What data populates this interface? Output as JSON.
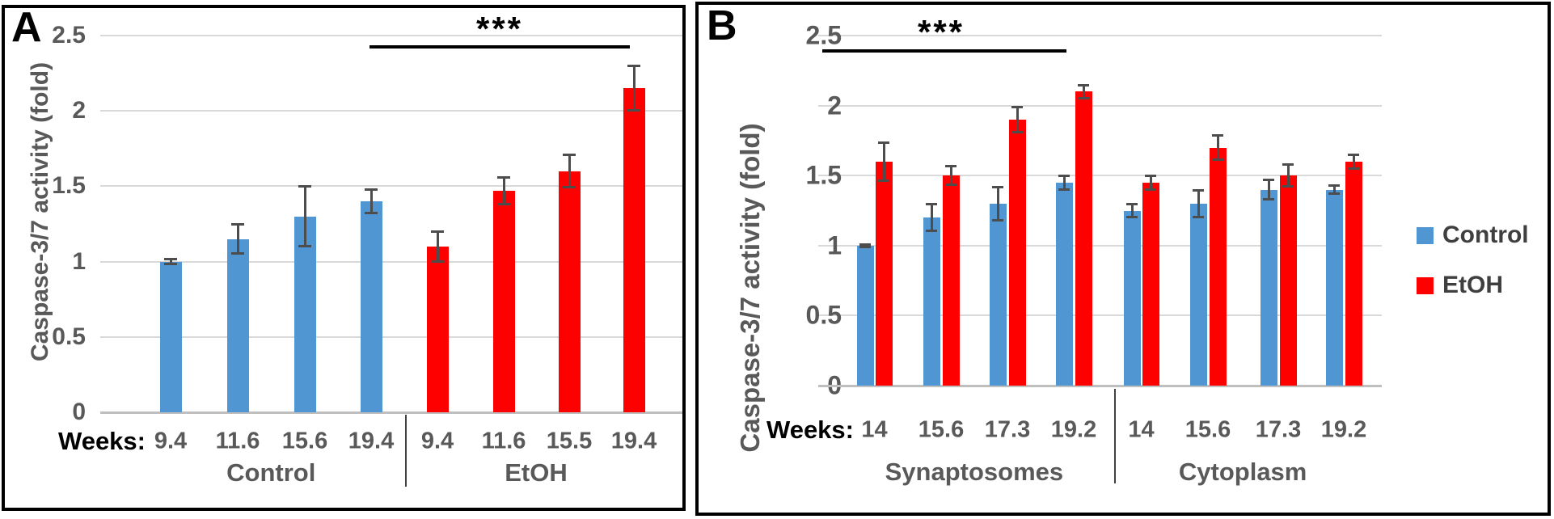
{
  "colors": {
    "control": "#4F96D3",
    "etoh": "#FE0000",
    "grid": "#D9D9D9",
    "axis_line": "#BFBFBF",
    "tick_text": "#595959",
    "error_bar": "#4D4D4D",
    "weeks_prefix_text": "#000000",
    "week_text": "#595959",
    "group_text": "#595959",
    "legend_text": "#3F3F3F",
    "significance": "#000000",
    "panel_letter": "#000000",
    "divider": "#404040"
  },
  "legend": {
    "position": "right",
    "entries": [
      {
        "label": "Control",
        "color_key": "control"
      },
      {
        "label": "EtOH",
        "color_key": "etoh"
      }
    ]
  },
  "chart_data": [
    {
      "id": "A",
      "panel_label": "A",
      "type": "bar",
      "ylabel": "Caspase-3/7 activity (fold)",
      "ylim": [
        0,
        2.5
      ],
      "yticks": [
        0,
        0.5,
        1,
        1.5,
        2,
        2.5
      ],
      "grid": true,
      "weeks_prefix": "Weeks:",
      "significance": {
        "text": "***"
      },
      "groups": [
        {
          "label": "Control",
          "series": "Control",
          "color_key": "control",
          "weeks": [
            "9.4",
            "11.6",
            "15.6",
            "19.4"
          ],
          "values": [
            1.0,
            1.15,
            1.3,
            1.4
          ],
          "errors": [
            0.02,
            0.1,
            0.2,
            0.08
          ]
        },
        {
          "label": "EtOH",
          "series": "EtOH",
          "color_key": "etoh",
          "weeks": [
            "9.4",
            "11.6",
            "15.5",
            "19.4"
          ],
          "values": [
            1.1,
            1.47,
            1.6,
            2.15
          ],
          "errors": [
            0.1,
            0.09,
            0.11,
            0.15
          ]
        }
      ]
    },
    {
      "id": "B",
      "panel_label": "B",
      "type": "grouped-bar",
      "ylabel": "Caspase-3/7 activity (fold)",
      "ylim": [
        0,
        2.5
      ],
      "yticks": [
        0,
        0.5,
        1,
        1.5,
        2,
        2.5
      ],
      "grid": true,
      "weeks_prefix": "Weeks:",
      "significance": {
        "text": "***"
      },
      "series_names": [
        "Control",
        "EtOH"
      ],
      "groups": [
        {
          "label": "Synaptosomes",
          "weeks": [
            "14",
            "15.6",
            "17.3",
            "19.2"
          ],
          "series": [
            {
              "name": "Control",
              "color_key": "control",
              "values": [
                1.0,
                1.2,
                1.3,
                1.45
              ],
              "errors": [
                0.01,
                0.1,
                0.12,
                0.05
              ]
            },
            {
              "name": "EtOH",
              "color_key": "etoh",
              "values": [
                1.6,
                1.5,
                1.9,
                2.1
              ],
              "errors": [
                0.14,
                0.07,
                0.09,
                0.05
              ]
            }
          ]
        },
        {
          "label": "Cytoplasm",
          "weeks": [
            "14",
            "15.6",
            "17.3",
            "19.2"
          ],
          "series": [
            {
              "name": "Control",
              "color_key": "control",
              "values": [
                1.25,
                1.3,
                1.4,
                1.4
              ],
              "errors": [
                0.05,
                0.1,
                0.07,
                0.03
              ]
            },
            {
              "name": "EtOH",
              "color_key": "etoh",
              "values": [
                1.45,
                1.7,
                1.5,
                1.6
              ],
              "errors": [
                0.05,
                0.09,
                0.08,
                0.05
              ]
            }
          ]
        }
      ]
    }
  ]
}
